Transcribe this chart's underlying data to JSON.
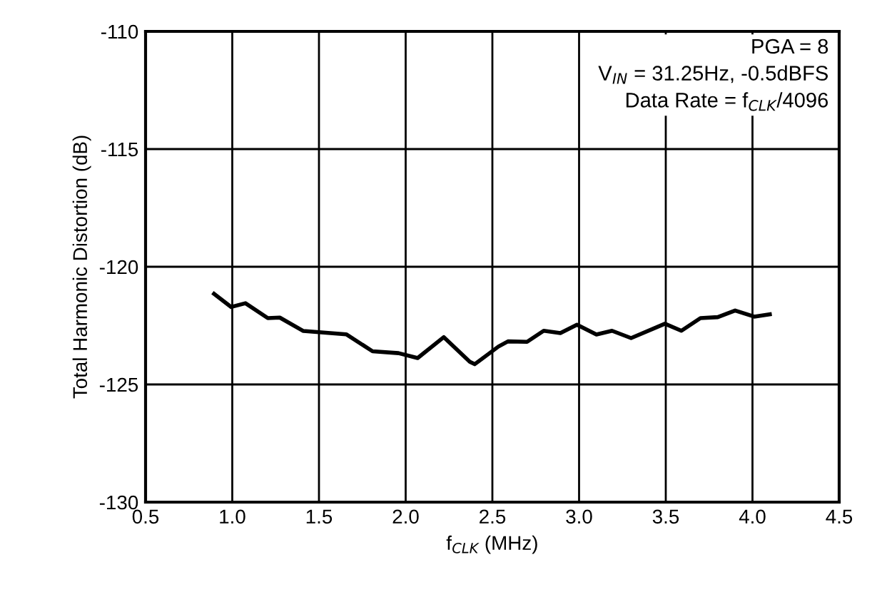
{
  "chart_data": {
    "type": "line",
    "xlabel": "f$_{CLK}$ (MHz)",
    "ylabel": "Total Harmonic Distortion (dB)",
    "annotations": [
      "PGA = 8",
      "V$_{IN}$ = 31.25Hz, -0.5dBFS",
      "Data Rate = f$_{CLK}$/4096"
    ],
    "series": [
      {
        "color": "#000000",
        "x": [
          0.895,
          0.994,
          1.076,
          1.205,
          1.274,
          1.41,
          1.657,
          1.809,
          1.959,
          2.069,
          2.22,
          2.37,
          2.398,
          2.535,
          2.59,
          2.7,
          2.796,
          2.892,
          2.988,
          3.1,
          3.19,
          3.3,
          3.495,
          3.59,
          3.7,
          3.8,
          3.9,
          4.01,
          4.1
        ],
        "values": [
          -121.15,
          -121.71,
          -121.55,
          -122.18,
          -122.16,
          -122.73,
          -122.87,
          -123.59,
          -123.67,
          -123.88,
          -122.99,
          -124.04,
          -124.14,
          -123.39,
          -123.17,
          -123.19,
          -122.72,
          -122.82,
          -122.46,
          -122.88,
          -122.72,
          -123.03,
          -122.42,
          -122.72,
          -122.18,
          -122.14,
          -121.86,
          -122.12,
          -122.02
        ]
      }
    ],
    "xlim": [
      0.5,
      4.5
    ],
    "xticks": [
      {
        "value": 0.5,
        "label": "0.5"
      },
      {
        "value": 1,
        "label": "1.0"
      },
      {
        "value": 1.5,
        "label": "1.5"
      },
      {
        "value": 2,
        "label": "2.0"
      },
      {
        "value": 2.5,
        "label": "2.5"
      },
      {
        "value": 3,
        "label": "3.0"
      },
      {
        "value": 3.5,
        "label": "3.5"
      },
      {
        "value": 4,
        "label": "4.0"
      },
      {
        "value": 4.5,
        "label": "4.5"
      }
    ],
    "ylim": [
      -130,
      -110
    ],
    "yticks": [
      -130,
      -125,
      -120,
      -115,
      -110
    ],
    "grid": true,
    "marker": "none",
    "line_style": "solid"
  }
}
